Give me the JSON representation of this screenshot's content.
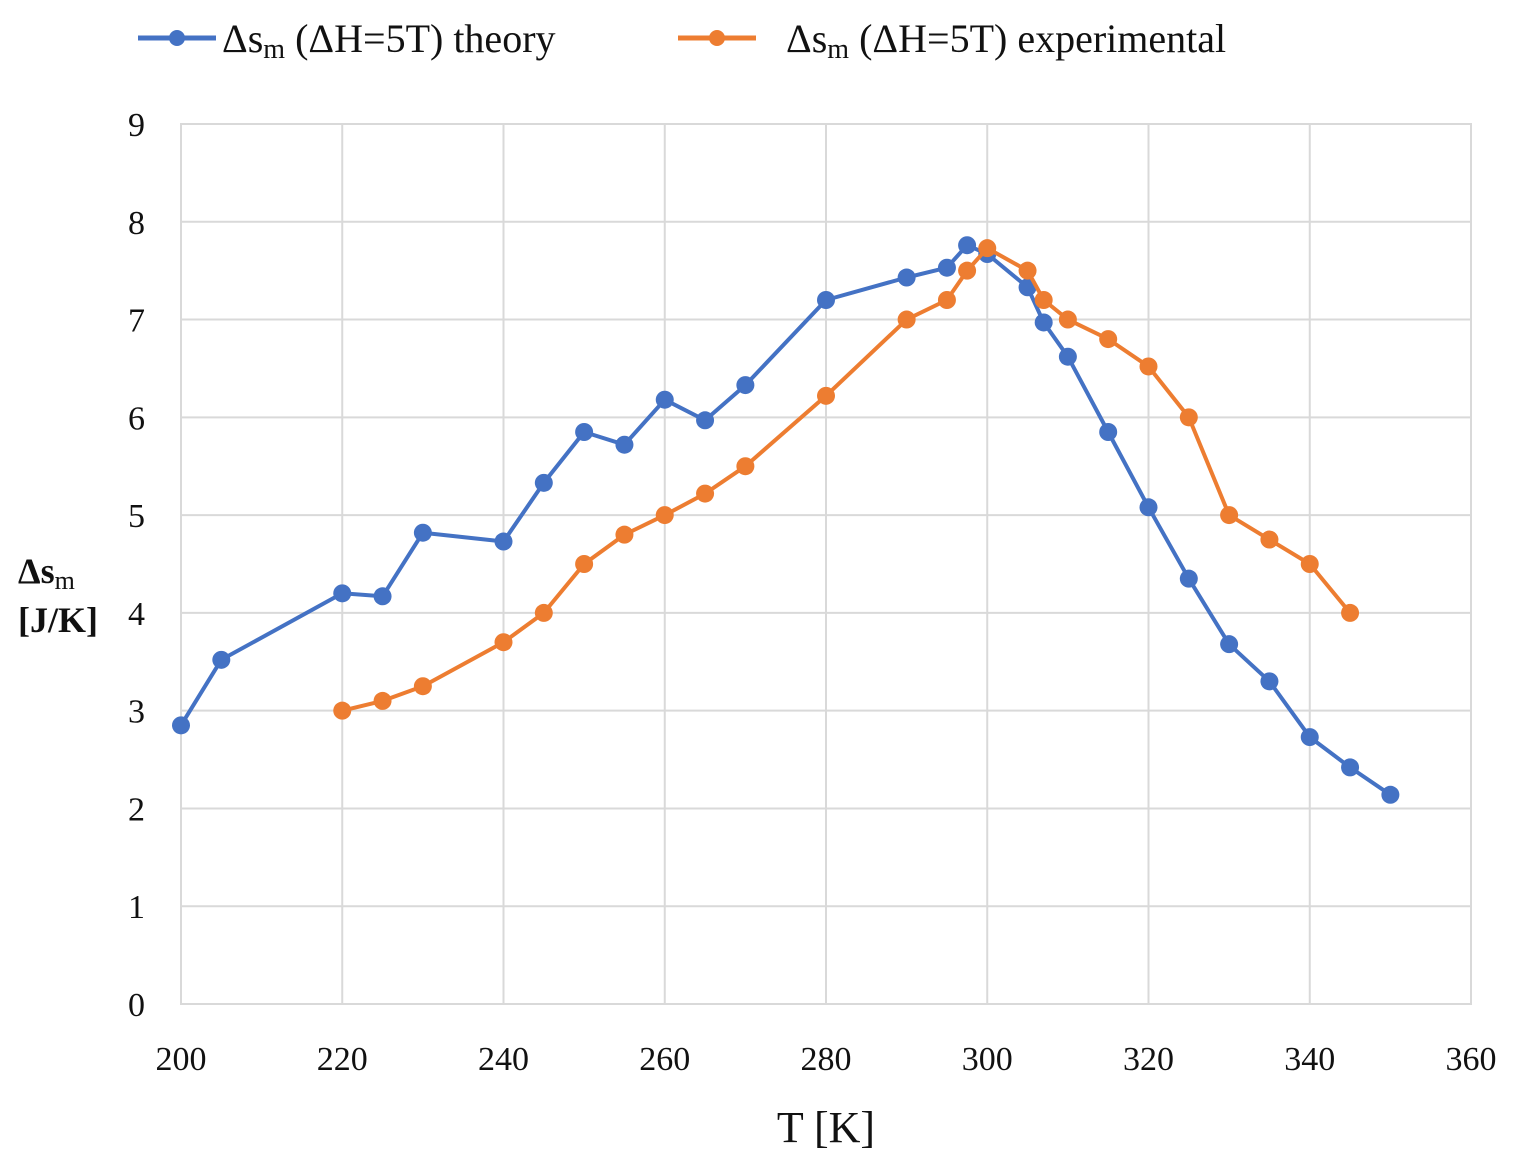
{
  "chart_data": {
    "type": "line",
    "title": "",
    "xlabel": "T [K]",
    "ylabel": {
      "main": "Δs",
      "sub": "m",
      "unit": "[J/K]"
    },
    "xlim": [
      200,
      360
    ],
    "ylim": [
      0,
      9
    ],
    "xticks": [
      200,
      220,
      240,
      260,
      280,
      300,
      320,
      340,
      360
    ],
    "yticks": [
      0,
      1,
      2,
      3,
      4,
      5,
      6,
      7,
      8,
      9
    ],
    "grid": true,
    "legend_position": "top",
    "series": [
      {
        "name": "Δsm (ΔH=5T) theory",
        "legend": {
          "main": "Δs",
          "sub": "m",
          "rest": " (ΔH=5T)  theory"
        },
        "color": "#4472C4",
        "x": [
          200,
          205,
          220,
          225,
          230,
          240,
          245,
          250,
          255,
          260,
          265,
          270,
          280,
          290,
          295,
          297.5,
          300,
          305,
          307,
          310,
          315,
          320,
          325,
          330,
          335,
          340,
          345,
          350
        ],
        "y": [
          2.85,
          3.52,
          4.2,
          4.17,
          4.82,
          4.73,
          5.33,
          5.85,
          5.72,
          6.18,
          5.97,
          6.33,
          7.2,
          7.43,
          7.53,
          7.76,
          7.67,
          7.33,
          6.97,
          6.62,
          5.85,
          5.08,
          4.35,
          3.68,
          3.3,
          2.73,
          2.42,
          2.14
        ]
      },
      {
        "name": "Δsm (ΔH=5T) experimental",
        "legend": {
          "main": "Δs",
          "sub": "m",
          "rest": " (ΔH=5T)  experimental"
        },
        "color": "#ED7D31",
        "x": [
          220,
          225,
          230,
          240,
          245,
          250,
          255,
          260,
          265,
          270,
          280,
          290,
          295,
          297.5,
          300,
          305,
          307,
          310,
          315,
          320,
          325,
          330,
          335,
          340,
          345
        ],
        "y": [
          3.0,
          3.1,
          3.25,
          3.7,
          4.0,
          4.5,
          4.8,
          5.0,
          5.22,
          5.5,
          6.22,
          7.0,
          7.2,
          7.5,
          7.73,
          7.5,
          7.2,
          7.0,
          6.8,
          6.52,
          6.0,
          5.0,
          4.75,
          4.5,
          4.0
        ]
      }
    ]
  }
}
